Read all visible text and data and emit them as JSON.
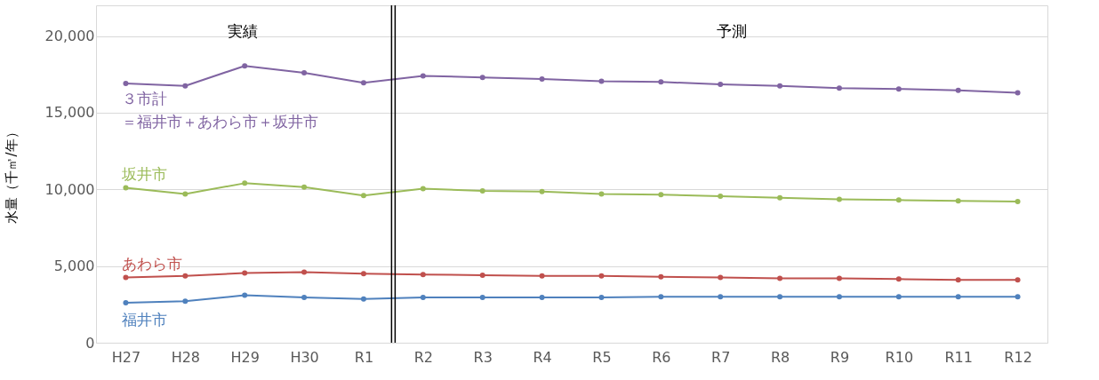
{
  "chart_data": {
    "type": "line",
    "ylabel": "水量（千㎥/年）",
    "categories": [
      "H27",
      "H28",
      "H29",
      "H30",
      "R1",
      "R2",
      "R3",
      "R4",
      "R5",
      "R6",
      "R7",
      "R8",
      "R9",
      "R10",
      "R11",
      "R12"
    ],
    "series": [
      {
        "name": "３市計",
        "color": "#8064a2",
        "values": [
          16900,
          16750,
          18050,
          17600,
          16950,
          17400,
          17300,
          17200,
          17050,
          17000,
          16850,
          16750,
          16600,
          16550,
          16450,
          16300
        ]
      },
      {
        "name": "坂井市",
        "color": "#9bbb59",
        "values": [
          10100,
          9700,
          10400,
          10150,
          9600,
          10050,
          9900,
          9850,
          9700,
          9650,
          9550,
          9450,
          9350,
          9300,
          9250,
          9200
        ]
      },
      {
        "name": "あわら市",
        "color": "#c0504d",
        "values": [
          4250,
          4350,
          4550,
          4600,
          4500,
          4450,
          4400,
          4350,
          4350,
          4300,
          4250,
          4200,
          4200,
          4150,
          4100,
          4100
        ]
      },
      {
        "name": "福井市",
        "color": "#4f81bd",
        "values": [
          2600,
          2700,
          3100,
          2950,
          2850,
          2950,
          2950,
          2950,
          2950,
          3000,
          3000,
          3000,
          3000,
          3000,
          3000,
          3000
        ]
      }
    ],
    "annotations": [
      "実績",
      "予測",
      "＝福井市＋あわら市＋坂井市"
    ],
    "ylim": [
      0,
      22000
    ],
    "yticks": [
      0,
      {
        "value": 5000,
        "label": "5,000"
      },
      {
        "value": 10000,
        "label": "10,000"
      },
      {
        "value": 15000,
        "label": "15,000"
      },
      {
        "value": 20000,
        "label": "20,000"
      }
    ],
    "grid": "y",
    "marker": "circle",
    "line_style": "solid"
  }
}
